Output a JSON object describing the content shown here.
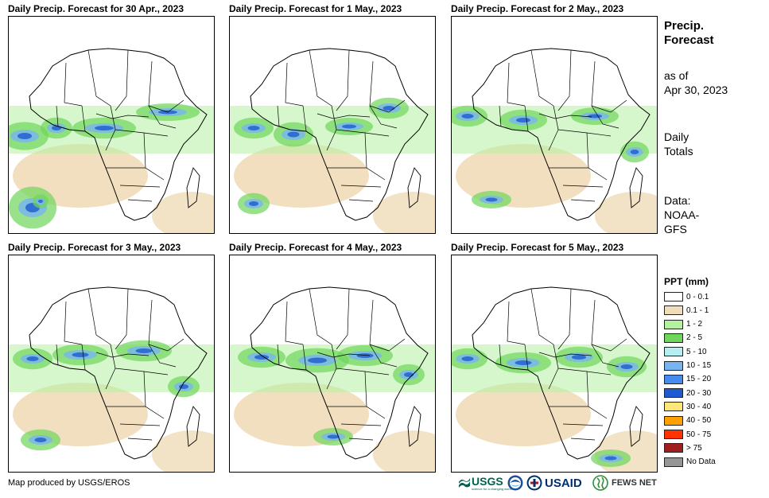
{
  "panels": [
    {
      "title": "Daily Precip. Forecast for 30 Apr., 2023"
    },
    {
      "title": "Daily Precip. Forecast for 1 May., 2023"
    },
    {
      "title": "Daily Precip. Forecast for 2 May., 2023"
    },
    {
      "title": "Daily Precip. Forecast for 3 May., 2023"
    },
    {
      "title": "Daily Precip. Forecast for 4 May., 2023"
    },
    {
      "title": "Daily Precip. Forecast for 5 May., 2023"
    }
  ],
  "sidebar": {
    "title_line1": "Precip.",
    "title_line2": "Forecast",
    "asof_line1": "as of",
    "asof_line2": "Apr 30, 2023",
    "totals_line1": "Daily",
    "totals_line2": "Totals",
    "data_line1": "Data:",
    "data_line2": "NOAA-",
    "data_line3": "GFS"
  },
  "legend": {
    "title": "PPT (mm)",
    "items": [
      {
        "label": "0 - 0.1",
        "color": "#ffffff"
      },
      {
        "label": "0.1 - 1",
        "color": "#efdcb8"
      },
      {
        "label": "1 - 2",
        "color": "#b4f0a0"
      },
      {
        "label": "2 - 5",
        "color": "#6ed65a"
      },
      {
        "label": "5 - 10",
        "color": "#b4eef0"
      },
      {
        "label": "10 - 15",
        "color": "#78b4f0"
      },
      {
        "label": "15 - 20",
        "color": "#468cf0"
      },
      {
        "label": "20 - 30",
        "color": "#1e5ad2"
      },
      {
        "label": "30 - 40",
        "color": "#ffe678"
      },
      {
        "label": "40 - 50",
        "color": "#ffa000"
      },
      {
        "label": "50 - 75",
        "color": "#ff3200"
      },
      {
        "label": "> 75",
        "color": "#a01e1e"
      },
      {
        "label": "No Data",
        "color": "#969696"
      }
    ]
  },
  "footer": {
    "credit": "Map produced by USGS/EROS",
    "usgs": "USGS",
    "usgs_tagline": "science for a changing world",
    "usaid": "USAID",
    "fews": "FEWS NET"
  }
}
